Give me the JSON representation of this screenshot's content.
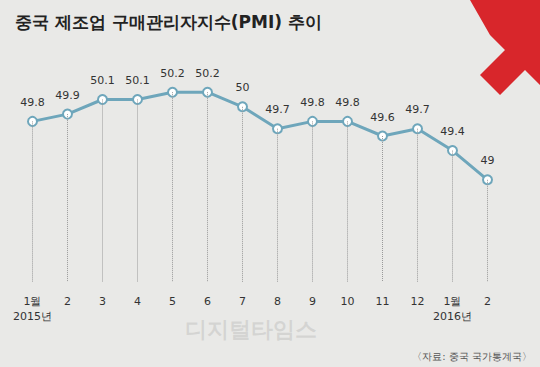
{
  "chart_data": {
    "type": "line",
    "title": "중국 제조업 구매관리자지수(PMI) 추이",
    "source": "〈자료: 중국 국가통계국〉",
    "watermark": "디지털타임스",
    "categories": [
      "1월\n2015년",
      "2",
      "3",
      "4",
      "5",
      "6",
      "7",
      "8",
      "9",
      "10",
      "11",
      "12",
      "1월\n2016년",
      "2"
    ],
    "values": [
      49.8,
      49.9,
      50.1,
      50.1,
      50.2,
      50.2,
      50,
      49.7,
      49.8,
      49.8,
      49.6,
      49.7,
      49.4,
      49
    ],
    "color": "#6ea6bb",
    "ylim": [
      47.6,
      50.6
    ],
    "grid": false,
    "data_labels": true,
    "tick_labels": "x",
    "marker": "circle"
  }
}
